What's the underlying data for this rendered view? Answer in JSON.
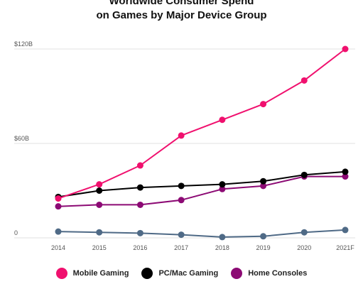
{
  "chart_data": {
    "type": "line",
    "title_lines": [
      "Worldwide Consumer Spend",
      "on Games by Major Device Group"
    ],
    "xlabel": "",
    "ylabel": "",
    "categories": [
      "2014",
      "2015",
      "2016",
      "2017",
      "2018",
      "2019",
      "2020",
      "2021F"
    ],
    "yticks": [
      {
        "value": 0,
        "label": "0"
      },
      {
        "value": 60,
        "label": "$60B"
      },
      {
        "value": 120,
        "label": "$120B"
      }
    ],
    "ylim": [
      0,
      120
    ],
    "grid": true,
    "legend_position": "bottom",
    "series": [
      {
        "name": "Mobile Gaming",
        "color": "#f0106e",
        "values": [
          25,
          34,
          46,
          65,
          75,
          85,
          100,
          120
        ]
      },
      {
        "name": "PC/Mac Gaming",
        "color": "#000000",
        "values": [
          26,
          30,
          32,
          33,
          34,
          36,
          40,
          42
        ]
      },
      {
        "name": "Home Consoles",
        "color": "#8c0a74",
        "values": [
          20,
          21,
          21,
          24,
          31,
          33,
          39,
          39
        ]
      },
      {
        "name": "",
        "color": "#4f6a86",
        "values": [
          4,
          3.5,
          3,
          2,
          0.5,
          1,
          3.5,
          5
        ]
      }
    ]
  }
}
